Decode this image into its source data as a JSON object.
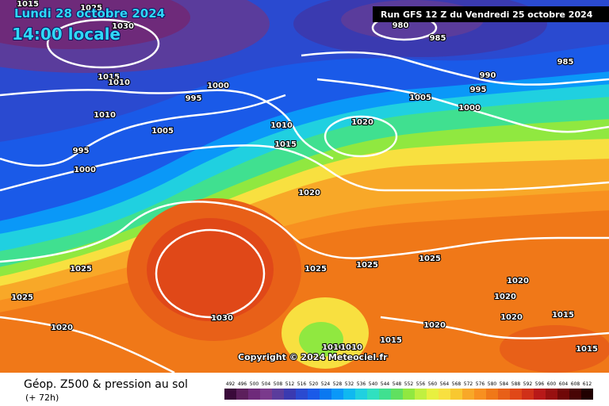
{
  "header": {
    "date": "Lundi 28 octobre 2024",
    "time": "14:00 locale",
    "run": "Run GFS 12 Z du Vendredi 25 octobre 2024"
  },
  "copyright": "Copyright © 2024 Meteociel.fr",
  "footer": {
    "title": "Géop. Z500 & pression au sol",
    "lead": "(+ 72h)"
  },
  "isobar_labels": [
    1015,
    1025,
    1030,
    980,
    985,
    985,
    990,
    995,
    1015,
    1010,
    1000,
    995,
    1005,
    1000,
    1010,
    1005,
    1010,
    1020,
    1015,
    995,
    1000,
    1020,
    1025,
    1025,
    1025,
    1025,
    1020,
    1025,
    1020,
    1030,
    1020,
    1015,
    1020,
    1020,
    1015,
    1010,
    1010,
    1015
  ],
  "legend": {
    "values": [
      492,
      496,
      500,
      504,
      508,
      512,
      516,
      520,
      524,
      528,
      532,
      536,
      540,
      544,
      548,
      552,
      556,
      560,
      564,
      568,
      572,
      576,
      580,
      584,
      588,
      592,
      596,
      600,
      604,
      608,
      612
    ],
    "colors": [
      "#3a0a3a",
      "#5c1f5c",
      "#6e2a7a",
      "#7a3a8c",
      "#5a3c9c",
      "#3a3ab0",
      "#2a4ad0",
      "#1a5ae8",
      "#0a78f0",
      "#0a98f8",
      "#10b8f0",
      "#20d0e0",
      "#30e0c0",
      "#40e090",
      "#60e060",
      "#90e840",
      "#c0f040",
      "#e8f040",
      "#f8e040",
      "#f8c830",
      "#f8a828",
      "#f89020",
      "#f07818",
      "#e86018",
      "#e04818",
      "#d03018",
      "#b81818",
      "#981010",
      "#700808",
      "#480404",
      "#200000"
    ]
  }
}
